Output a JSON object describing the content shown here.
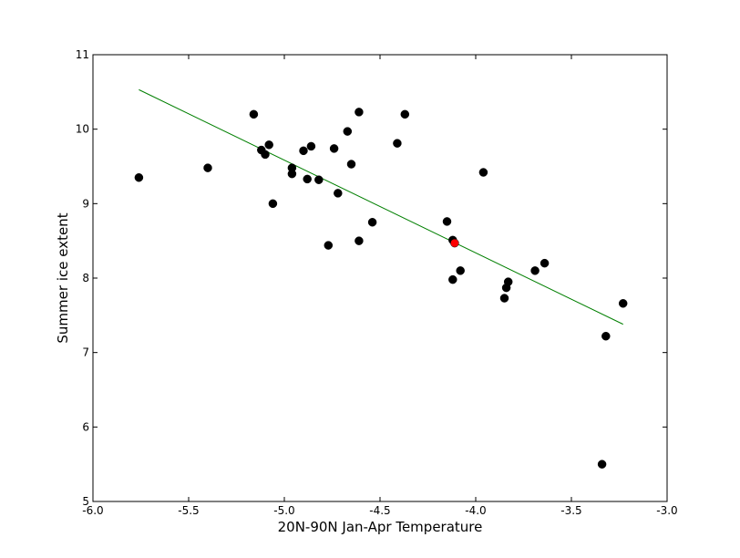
{
  "chart_data": {
    "type": "scatter",
    "title": "",
    "xlabel": "20N-90N Jan-Apr Temperature",
    "ylabel": "Summer ice extent",
    "xlim": [
      -6.0,
      -3.0
    ],
    "ylim": [
      5,
      11
    ],
    "xticks": [
      "-6.0",
      "-5.5",
      "-5.0",
      "-4.5",
      "-4.0",
      "-3.5",
      "-3.0"
    ],
    "yticks": [
      "5",
      "6",
      "7",
      "8",
      "9",
      "10",
      "11"
    ],
    "grid": false,
    "legend": "none",
    "colors": {
      "points": "#000000",
      "highlight": "#ff0000",
      "fit_line": "#007f00"
    },
    "points": [
      {
        "x": -5.76,
        "y": 9.35
      },
      {
        "x": -5.4,
        "y": 9.48
      },
      {
        "x": -5.16,
        "y": 10.2
      },
      {
        "x": -5.12,
        "y": 9.72
      },
      {
        "x": -5.1,
        "y": 9.66
      },
      {
        "x": -5.08,
        "y": 9.79
      },
      {
        "x": -5.06,
        "y": 9.0
      },
      {
        "x": -4.96,
        "y": 9.48
      },
      {
        "x": -4.96,
        "y": 9.4
      },
      {
        "x": -4.9,
        "y": 9.71
      },
      {
        "x": -4.88,
        "y": 9.33
      },
      {
        "x": -4.86,
        "y": 9.77
      },
      {
        "x": -4.82,
        "y": 9.32
      },
      {
        "x": -4.77,
        "y": 8.44
      },
      {
        "x": -4.74,
        "y": 9.74
      },
      {
        "x": -4.72,
        "y": 9.14
      },
      {
        "x": -4.67,
        "y": 9.97
      },
      {
        "x": -4.65,
        "y": 9.53
      },
      {
        "x": -4.61,
        "y": 10.23
      },
      {
        "x": -4.61,
        "y": 8.5
      },
      {
        "x": -4.54,
        "y": 8.75
      },
      {
        "x": -4.41,
        "y": 9.81
      },
      {
        "x": -4.37,
        "y": 10.2
      },
      {
        "x": -4.15,
        "y": 8.76
      },
      {
        "x": -4.12,
        "y": 8.51
      },
      {
        "x": -4.12,
        "y": 7.98
      },
      {
        "x": -4.08,
        "y": 8.1
      },
      {
        "x": -3.96,
        "y": 9.42
      },
      {
        "x": -3.85,
        "y": 7.73
      },
      {
        "x": -3.84,
        "y": 7.87
      },
      {
        "x": -3.83,
        "y": 7.95
      },
      {
        "x": -3.69,
        "y": 8.1
      },
      {
        "x": -3.64,
        "y": 8.2
      },
      {
        "x": -3.34,
        "y": 5.5
      },
      {
        "x": -3.32,
        "y": 7.22
      },
      {
        "x": -3.23,
        "y": 7.66
      }
    ],
    "highlight": [
      {
        "x": -4.11,
        "y": 8.47
      }
    ],
    "fit_line": {
      "x": [
        -5.76,
        -3.23
      ],
      "y": [
        10.53,
        7.38
      ]
    }
  }
}
